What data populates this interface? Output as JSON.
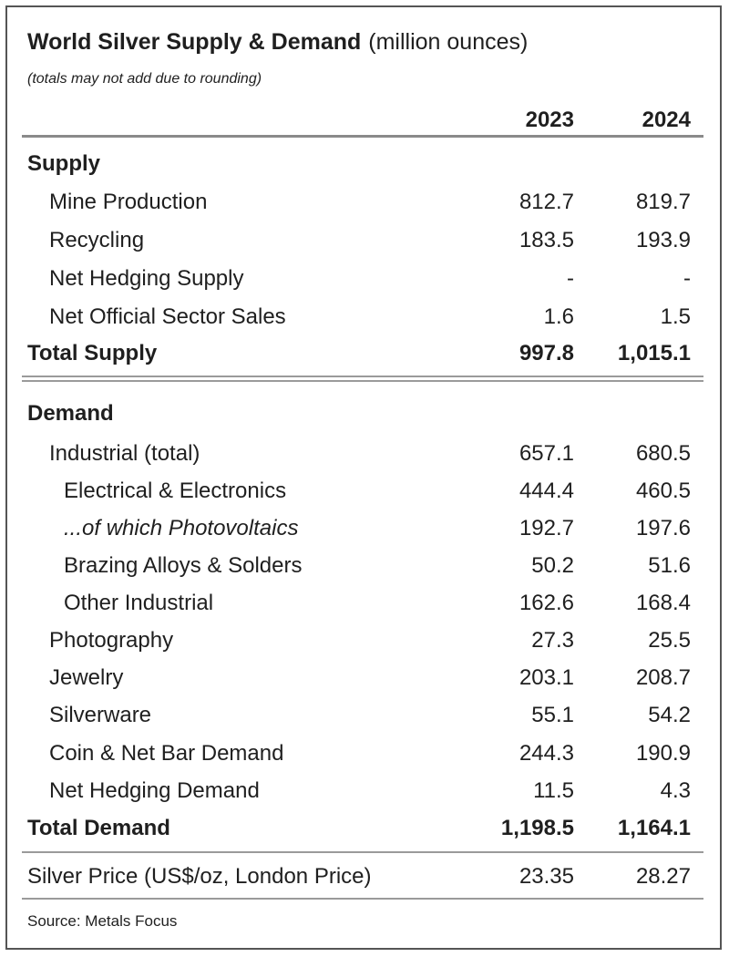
{
  "chart_data": {
    "type": "table",
    "title": "World Silver Supply & Demand",
    "title_unit": "(million ounces)",
    "note": "(totals may not add due to rounding)",
    "columns": [
      "2023",
      "2024"
    ],
    "supply": {
      "header": "Supply",
      "rows": [
        {
          "label": "Mine Production",
          "values": [
            "812.7",
            "819.7"
          ]
        },
        {
          "label": "Recycling",
          "values": [
            "183.5",
            "193.9"
          ]
        },
        {
          "label": "Net Hedging Supply",
          "values": [
            "-",
            "-"
          ]
        },
        {
          "label": "Net Official Sector Sales",
          "values": [
            "1.6",
            "1.5"
          ]
        }
      ],
      "total": {
        "label": "Total Supply",
        "values": [
          "997.8",
          "1,015.1"
        ]
      }
    },
    "demand": {
      "header": "Demand",
      "rows": [
        {
          "label": "Industrial (total)",
          "values": [
            "657.1",
            "680.5"
          ]
        },
        {
          "label": "Electrical & Electronics",
          "values": [
            "444.4",
            "460.5"
          ]
        },
        {
          "label": "...of which Photovoltaics",
          "values": [
            "192.7",
            "197.6"
          ]
        },
        {
          "label": "Brazing Alloys & Solders",
          "values": [
            "50.2",
            "51.6"
          ]
        },
        {
          "label": "Other Industrial",
          "values": [
            "162.6",
            "168.4"
          ]
        },
        {
          "label": "Photography",
          "values": [
            "27.3",
            "25.5"
          ]
        },
        {
          "label": "Jewelry",
          "values": [
            "203.1",
            "208.7"
          ]
        },
        {
          "label": "Silverware",
          "values": [
            "55.1",
            "54.2"
          ]
        },
        {
          "label": "Coin & Net Bar Demand",
          "values": [
            "244.3",
            "190.9"
          ]
        },
        {
          "label": "Net Hedging Demand",
          "values": [
            "11.5",
            "4.3"
          ]
        }
      ],
      "total": {
        "label": "Total Demand",
        "values": [
          "1,198.5",
          "1,164.1"
        ]
      }
    },
    "price": {
      "label": "Silver Price (US$/oz, London Price)",
      "values": [
        "23.35",
        "28.27"
      ]
    },
    "source": "Source: Metals Focus"
  }
}
